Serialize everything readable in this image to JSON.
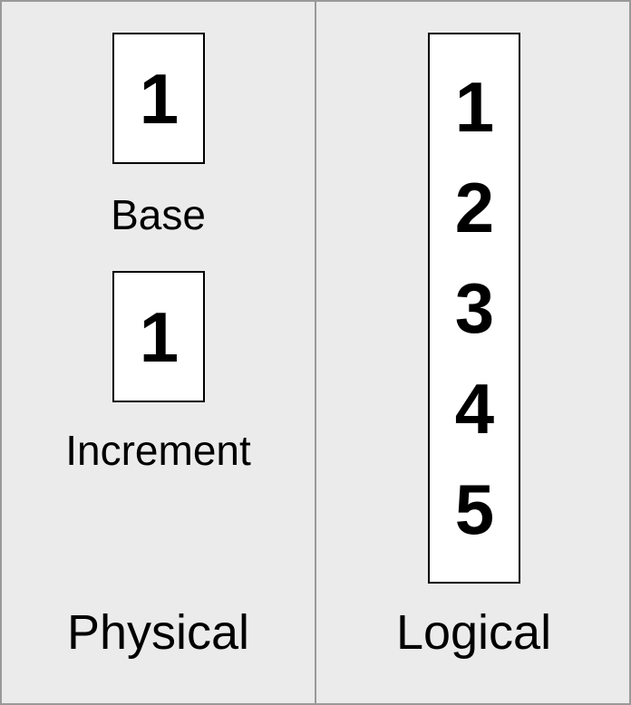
{
  "colors": {
    "background": "#ebebeb",
    "frame_border": "#999999",
    "box_fill": "#ffffff",
    "box_border": "#000000",
    "text": "#000000"
  },
  "panels": {
    "physical": {
      "label": "Physical",
      "base": {
        "value": "1",
        "caption": "Base"
      },
      "increment": {
        "value": "1",
        "caption": "Increment"
      }
    },
    "logical": {
      "label": "Logical",
      "values": [
        "1",
        "2",
        "3",
        "4",
        "5"
      ]
    }
  }
}
